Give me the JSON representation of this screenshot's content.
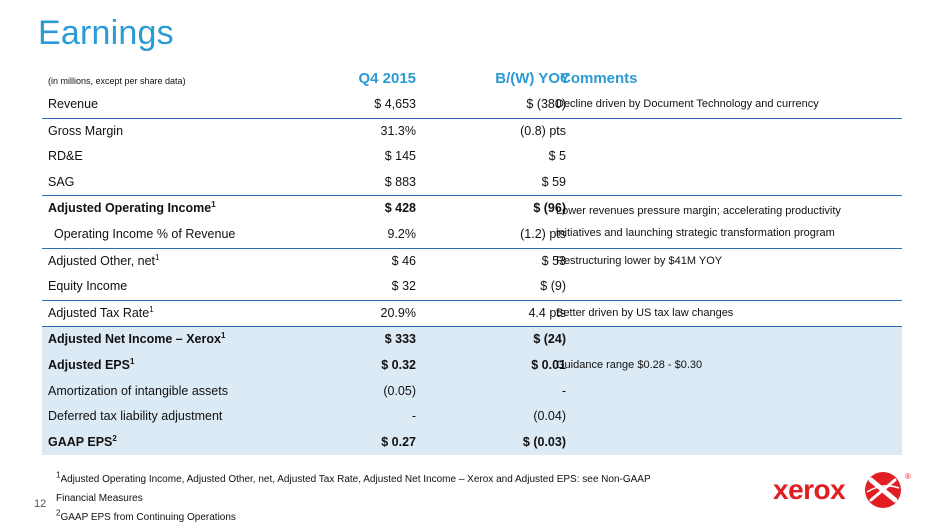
{
  "slide": {
    "title": "Earnings",
    "subtitle": "(in millions, except per share data)",
    "page_number": "12"
  },
  "columns": {
    "q4": "Q4 2015",
    "yoy": "B/(W) YOY",
    "comments": "Comments"
  },
  "rows": [
    {
      "label": "Revenue",
      "q4": "$ 4,653",
      "yoy": "$ (380)",
      "comment": "Decline driven by Document Technology and currency"
    },
    {
      "label": "Gross Margin",
      "q4": "31.3%",
      "yoy": "(0.8) pts",
      "comment": ""
    },
    {
      "label": "RD&E",
      "q4": "$ 145",
      "yoy": "$ 5",
      "comment": ""
    },
    {
      "label": "SAG",
      "q4": "$ 883",
      "yoy": "$ 59",
      "comment": ""
    },
    {
      "label": "Adjusted Operating Income",
      "sup": "1",
      "q4": "$ 428",
      "yoy": "$ (96)",
      "comment": ""
    },
    {
      "label": "Operating Income % of Revenue",
      "q4": "9.2%",
      "yoy": "(1.2) pts",
      "comment": ""
    },
    {
      "label": "Adjusted Other, net",
      "sup": "1",
      "q4": "$ 46",
      "yoy": "$ 53",
      "comment": "Restructuring lower by $41M YOY"
    },
    {
      "label": "Equity Income",
      "q4": "$ 32",
      "yoy": "$ (9)",
      "comment": ""
    },
    {
      "label": "Adjusted Tax Rate",
      "sup": "1",
      "q4": "20.9%",
      "yoy": "4.4 pts",
      "comment": "Better driven by US tax law changes"
    },
    {
      "label": "Adjusted Net Income – Xerox",
      "sup": "1",
      "q4": "$ 333",
      "yoy": "$ (24)",
      "comment": ""
    },
    {
      "label": "Adjusted EPS",
      "sup": "1",
      "q4": "$ 0.32",
      "yoy": "$ 0.01",
      "comment": "Guidance range $0.28 - $0.30"
    },
    {
      "label": "Amortization of intangible assets",
      "q4": "(0.05)",
      "yoy": "-",
      "comment": ""
    },
    {
      "label": "Deferred tax liability adjustment",
      "q4": "-",
      "yoy": "(0.04)",
      "comment": ""
    },
    {
      "label": "GAAP EPS",
      "sup": "2",
      "q4": "$ 0.27",
      "yoy": "$ (0.03)",
      "comment": ""
    }
  ],
  "merged_comment": {
    "line1": "Lower revenues pressure margin; accelerating productivity",
    "line2": "initiatives and launching strategic transformation program"
  },
  "footnotes": {
    "note1_sup": "1",
    "note1_line1": "Adjusted Operating Income, Adjusted Other, net, Adjusted Tax Rate, Adjusted Net Income – Xerox and Adjusted EPS:  see Non-GAAP",
    "note1_line2": "Financial Measures",
    "note2_sup": "2",
    "note2": "GAAP EPS from Continuing Operations"
  },
  "logo": {
    "text": "xerox",
    "registered": "®",
    "icon": "xerox-ball-icon",
    "brand_color": "#e21d23"
  },
  "colors": {
    "title": "#2b9bd6",
    "separator": "#2a6cb0",
    "shaded_band": "#dceaf5"
  }
}
